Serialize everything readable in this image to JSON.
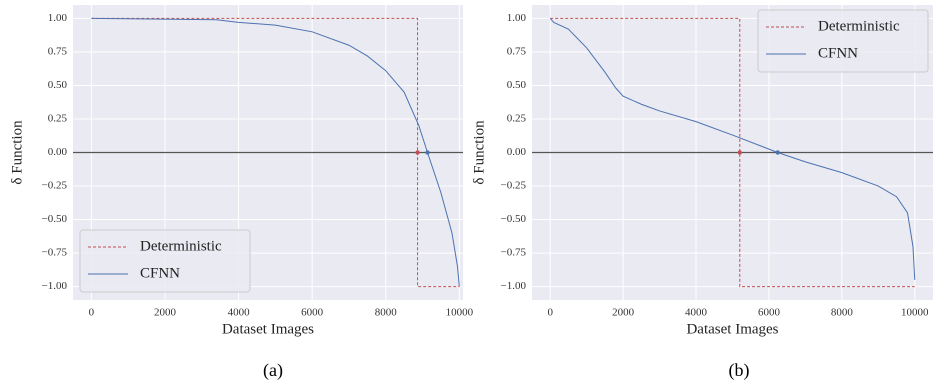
{
  "chart_data": [
    {
      "type": "line",
      "caption": "(a)",
      "xlabel": "Dataset Images",
      "ylabel": "δ Function",
      "xlim": [
        -500,
        10100
      ],
      "ylim": [
        -1.1,
        1.1
      ],
      "xticks": [
        0,
        2000,
        4000,
        6000,
        8000,
        10000
      ],
      "yticks": [
        {
          "value": 1,
          "label": "1.00"
        },
        {
          "value": 0.75,
          "label": "0.75"
        },
        {
          "value": 0.5,
          "label": "0.50"
        },
        {
          "value": 0.25,
          "label": "0.25"
        },
        {
          "value": 0,
          "label": "0.00"
        },
        {
          "value": -0.25,
          "label": "−0.25"
        },
        {
          "value": -0.5,
          "label": "−0.50"
        },
        {
          "value": -0.75,
          "label": "−0.75"
        },
        {
          "value": -1,
          "label": "−1.00"
        }
      ],
      "grid": true,
      "legend": "lower left",
      "hline": 0,
      "hline_color": "#555555",
      "series": [
        {
          "name": "Deterministic",
          "color": "#c44e52",
          "dash": true,
          "x": [
            0,
            8865,
            8865,
            10000
          ],
          "values": [
            1,
            1,
            -1,
            -1
          ],
          "crossing": 8865
        },
        {
          "name": "CFNN",
          "color": "#4c72b0",
          "dash": false,
          "x": [
            0,
            3400,
            4000,
            5000,
            6000,
            7000,
            7500,
            8000,
            8500,
            8900,
            9135,
            9500,
            9800,
            9950,
            10000
          ],
          "values": [
            1,
            0.99,
            0.97,
            0.95,
            0.9,
            0.8,
            0.72,
            0.61,
            0.45,
            0.2,
            0,
            -0.3,
            -0.6,
            -0.85,
            -1
          ],
          "crossing": 9135
        }
      ]
    },
    {
      "type": "line",
      "caption": "(b)",
      "xlabel": "Dataset Images",
      "ylabel": "δ Function",
      "xlim": [
        -500,
        10500
      ],
      "ylim": [
        -1.1,
        1.1
      ],
      "xticks": [
        0,
        2000,
        4000,
        6000,
        8000,
        10000
      ],
      "yticks": [
        {
          "value": 1,
          "label": "1.00"
        },
        {
          "value": 0.75,
          "label": "0.75"
        },
        {
          "value": 0.5,
          "label": "0.50"
        },
        {
          "value": 0.25,
          "label": "0.25"
        },
        {
          "value": 0,
          "label": "0.00"
        },
        {
          "value": -0.25,
          "label": "−0.25"
        },
        {
          "value": -0.5,
          "label": "−0.50"
        },
        {
          "value": -0.75,
          "label": "−0.75"
        },
        {
          "value": -1,
          "label": "−1.00"
        }
      ],
      "grid": true,
      "legend": "upper right",
      "hline": 0,
      "hline_color": "#555555",
      "series": [
        {
          "name": "Deterministic",
          "color": "#c44e52",
          "dash": true,
          "x": [
            0,
            5200,
            5200,
            10000
          ],
          "values": [
            1,
            1,
            -1,
            -1
          ],
          "crossing": 5200
        },
        {
          "name": "CFNN",
          "color": "#4c72b0",
          "dash": false,
          "x": [
            0,
            100,
            500,
            1000,
            1500,
            1800,
            2000,
            2500,
            3000,
            4000,
            5000,
            6240,
            7000,
            8000,
            9000,
            9500,
            9800,
            9950,
            10000
          ],
          "values": [
            1,
            0.97,
            0.92,
            0.78,
            0.6,
            0.48,
            0.42,
            0.36,
            0.31,
            0.23,
            0.13,
            0,
            -0.07,
            -0.15,
            -0.25,
            -0.33,
            -0.45,
            -0.7,
            -0.95
          ],
          "crossing": 6240
        }
      ]
    }
  ]
}
